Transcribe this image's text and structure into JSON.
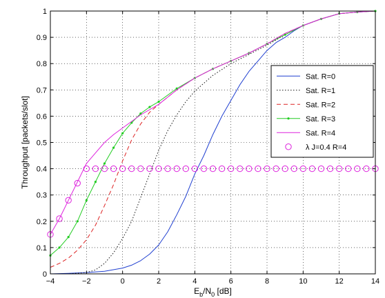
{
  "chart_data": {
    "type": "line",
    "xlabel": "E",
    "xlabel_sub_1": "b",
    "xlabel_mid": "/N",
    "xlabel_sub_2": "0",
    "xlabel_unit": " [dB]",
    "ylabel": "Throughput [packets/slot]",
    "xlim": [
      -4,
      14
    ],
    "ylim": [
      0,
      1
    ],
    "grid": true,
    "legend_position": "right",
    "xticks": [
      {
        "value": -4,
        "label": "−4"
      },
      {
        "value": -2,
        "label": "−2"
      },
      {
        "value": 0,
        "label": "0"
      },
      {
        "value": 2,
        "label": "2"
      },
      {
        "value": 4,
        "label": "4"
      },
      {
        "value": 6,
        "label": "6"
      },
      {
        "value": 8,
        "label": "8"
      },
      {
        "value": 10,
        "label": "10"
      },
      {
        "value": 12,
        "label": "12"
      },
      {
        "value": 14,
        "label": "14"
      }
    ],
    "yticks": [
      {
        "value": 0,
        "label": "0"
      },
      {
        "value": 0.1,
        "label": "0.1"
      },
      {
        "value": 0.2,
        "label": "0.2"
      },
      {
        "value": 0.3,
        "label": "0.3"
      },
      {
        "value": 0.4,
        "label": "0.4"
      },
      {
        "value": 0.5,
        "label": "0.5"
      },
      {
        "value": 0.6,
        "label": "0.6"
      },
      {
        "value": 0.7,
        "label": "0.7"
      },
      {
        "value": 0.8,
        "label": "0.8"
      },
      {
        "value": 0.9,
        "label": "0.9"
      },
      {
        "value": 1,
        "label": "1"
      }
    ],
    "series": [
      {
        "name": "Sat. R=0",
        "color": "#1f3fd0",
        "style": "solid",
        "marker": "none",
        "x": [
          -4,
          -3,
          -2,
          -1,
          0,
          0.5,
          1,
          1.5,
          2,
          2.5,
          3,
          3.5,
          4,
          4.5,
          5,
          5.5,
          6,
          6.5,
          7,
          7.5,
          8,
          8.5,
          9,
          9.5,
          10,
          11,
          12,
          13,
          14
        ],
        "y": [
          0.0,
          0.002,
          0.005,
          0.01,
          0.022,
          0.033,
          0.05,
          0.075,
          0.11,
          0.16,
          0.225,
          0.295,
          0.38,
          0.45,
          0.53,
          0.6,
          0.66,
          0.72,
          0.77,
          0.81,
          0.85,
          0.88,
          0.9,
          0.925,
          0.945,
          0.97,
          0.99,
          0.996,
          1.0
        ]
      },
      {
        "name": "Sat. R=1",
        "color": "#111111",
        "style": "dotted",
        "marker": "none",
        "x": [
          -4,
          -3,
          -2,
          -1.5,
          -1,
          -0.5,
          0,
          0.5,
          1,
          1.5,
          2,
          2.5,
          3,
          3.5,
          4,
          5,
          6,
          7,
          8,
          9,
          10,
          11,
          12,
          13,
          14
        ],
        "y": [
          0.0,
          0.0,
          0.005,
          0.015,
          0.04,
          0.08,
          0.135,
          0.2,
          0.29,
          0.38,
          0.47,
          0.545,
          0.605,
          0.655,
          0.695,
          0.755,
          0.8,
          0.835,
          0.87,
          0.91,
          0.945,
          0.97,
          0.99,
          0.996,
          1.0
        ]
      },
      {
        "name": "Sat. R=2",
        "color": "#dd2222",
        "style": "dashed",
        "marker": "none",
        "x": [
          -4,
          -3.5,
          -3,
          -2.5,
          -2,
          -1.5,
          -1,
          -0.5,
          0,
          0.5,
          1,
          1.5,
          2,
          3,
          4,
          5,
          6,
          7,
          8,
          9,
          10,
          11,
          12,
          13,
          14
        ],
        "y": [
          0.025,
          0.04,
          0.06,
          0.09,
          0.13,
          0.185,
          0.26,
          0.34,
          0.43,
          0.51,
          0.57,
          0.615,
          0.645,
          0.7,
          0.745,
          0.78,
          0.81,
          0.84,
          0.875,
          0.915,
          0.945,
          0.97,
          0.99,
          0.996,
          1.0
        ]
      },
      {
        "name": "Sat. R=3",
        "color": "#22cc22",
        "style": "solid",
        "marker": "dot",
        "x": [
          -4,
          -3.5,
          -3,
          -2.5,
          -2,
          -1.5,
          -1,
          -0.5,
          0,
          0.5,
          1,
          1.5,
          2,
          3,
          4,
          5,
          6,
          7,
          8,
          9,
          10,
          11,
          12,
          13,
          14
        ],
        "y": [
          0.07,
          0.1,
          0.14,
          0.2,
          0.28,
          0.35,
          0.42,
          0.48,
          0.535,
          0.575,
          0.61,
          0.635,
          0.655,
          0.705,
          0.745,
          0.78,
          0.81,
          0.84,
          0.875,
          0.91,
          0.945,
          0.97,
          0.99,
          0.996,
          1.0
        ]
      },
      {
        "name": "Sat. R=4",
        "color": "#dd22dd",
        "style": "solid",
        "marker": "none",
        "x": [
          -4,
          -3.5,
          -3,
          -2.5,
          -2,
          -1.5,
          -1,
          -0.5,
          0,
          0.5,
          1,
          1.5,
          2,
          3,
          4,
          5,
          6,
          7,
          8,
          9,
          10,
          11,
          12,
          13,
          14
        ],
        "y": [
          0.15,
          0.21,
          0.28,
          0.35,
          0.42,
          0.46,
          0.5,
          0.53,
          0.555,
          0.58,
          0.605,
          0.625,
          0.645,
          0.7,
          0.745,
          0.78,
          0.81,
          0.84,
          0.875,
          0.915,
          0.945,
          0.97,
          0.99,
          0.996,
          1.0
        ]
      },
      {
        "name": "λ J=0.4 R=4",
        "color": "#dd22dd",
        "style": "none",
        "marker": "circle",
        "x": [
          -4,
          -3.5,
          -3,
          -2.5,
          -2,
          -1.5,
          -1,
          -0.5,
          0,
          0.5,
          1,
          1.5,
          2,
          2.5,
          3,
          3.5,
          4,
          4.5,
          5,
          5.5,
          6,
          6.5,
          7,
          7.5,
          8,
          8.5,
          9,
          9.5,
          10,
          10.5,
          11,
          11.5,
          12,
          12.5,
          13,
          13.5,
          14
        ],
        "y": [
          0.15,
          0.21,
          0.28,
          0.345,
          0.4,
          0.4,
          0.4,
          0.4,
          0.4,
          0.4,
          0.4,
          0.4,
          0.4,
          0.4,
          0.4,
          0.4,
          0.4,
          0.4,
          0.4,
          0.4,
          0.4,
          0.4,
          0.4,
          0.4,
          0.4,
          0.4,
          0.4,
          0.4,
          0.4,
          0.4,
          0.4,
          0.4,
          0.4,
          0.4,
          0.4,
          0.4,
          0.4
        ]
      }
    ]
  }
}
